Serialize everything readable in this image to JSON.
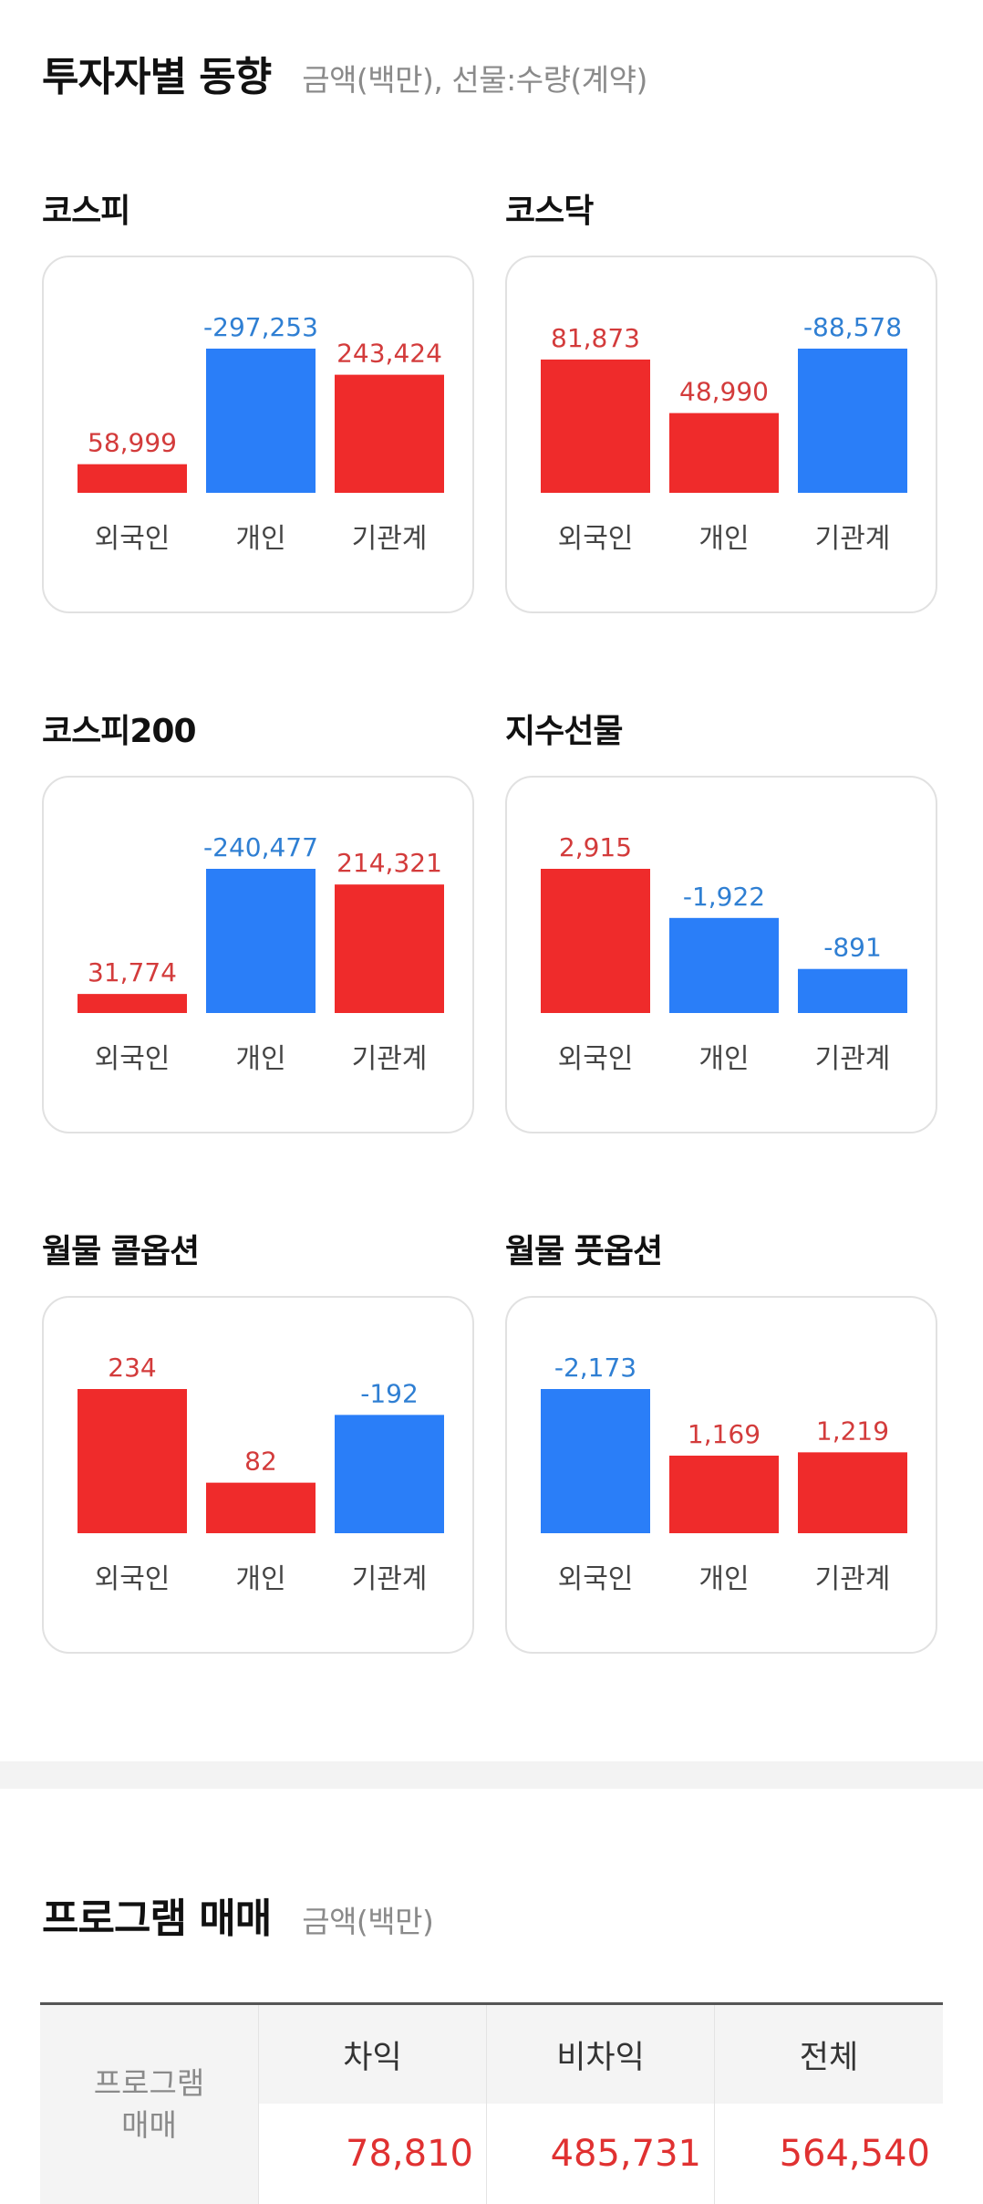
{
  "investor_section": {
    "title": "투자자별 동향",
    "subtitle": "금액(백만), 선물:수량(계약)"
  },
  "colors": {
    "positive": "#ef2b2b",
    "negative": "#2a7ef8",
    "positive_text": "#d33b3b",
    "negative_text": "#2f7fd3"
  },
  "chart_data": [
    {
      "type": "bar",
      "title": "코스피",
      "categories": [
        "외국인",
        "개인",
        "기관계"
      ],
      "values": [
        58999,
        -297253,
        243424
      ],
      "labels": [
        "58,999",
        "-297,253",
        "243,424"
      ]
    },
    {
      "type": "bar",
      "title": "코스닥",
      "categories": [
        "외국인",
        "개인",
        "기관계"
      ],
      "values": [
        81873,
        48990,
        -88578
      ],
      "labels": [
        "81,873",
        "48,990",
        "-88,578"
      ]
    },
    {
      "type": "bar",
      "title": "코스피200",
      "categories": [
        "외국인",
        "개인",
        "기관계"
      ],
      "values": [
        31774,
        -240477,
        214321
      ],
      "labels": [
        "31,774",
        "-240,477",
        "214,321"
      ]
    },
    {
      "type": "bar",
      "title": "지수선물",
      "categories": [
        "외국인",
        "개인",
        "기관계"
      ],
      "values": [
        2915,
        -1922,
        -891
      ],
      "labels": [
        "2,915",
        "-1,922",
        "-891"
      ]
    },
    {
      "type": "bar",
      "title": "월물 콜옵션",
      "categories": [
        "외국인",
        "개인",
        "기관계"
      ],
      "values": [
        234,
        82,
        -192
      ],
      "labels": [
        "234",
        "82",
        "-192"
      ]
    },
    {
      "type": "bar",
      "title": "월물 풋옵션",
      "categories": [
        "외국인",
        "개인",
        "기관계"
      ],
      "values": [
        -2173,
        1169,
        1219
      ],
      "labels": [
        "-2,173",
        "1,169",
        "1,219"
      ]
    }
  ],
  "program_section": {
    "title": "프로그램 매매",
    "subtitle": "금액(백만)",
    "row_label_line1": "프로그램",
    "row_label_line2": "매매",
    "columns": [
      "차익",
      "비차익",
      "전체"
    ],
    "values": [
      "78,810",
      "485,731",
      "564,540"
    ]
  }
}
